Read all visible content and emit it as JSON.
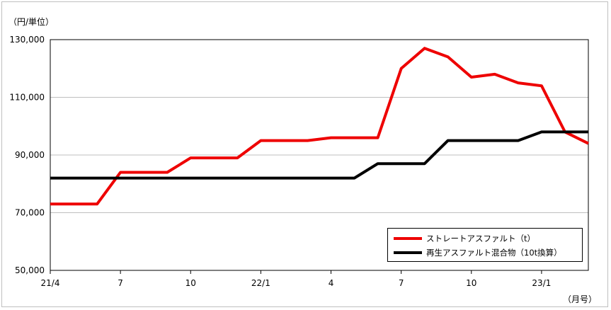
{
  "chart_data": {
    "type": "line",
    "ylabel": "（円/単位）",
    "xlabel": "（月号）",
    "ylim": [
      50000,
      130000
    ],
    "y_ticks": [
      "50,000",
      "70,000",
      "90,000",
      "110,000",
      "130,000"
    ],
    "y_tick_values": [
      50000,
      70000,
      90000,
      110000,
      130000
    ],
    "x_points": [
      "21/4",
      "21/5",
      "21/6",
      "21/7",
      "21/8",
      "21/9",
      "21/10",
      "21/11",
      "21/12",
      "22/1",
      "22/2",
      "22/3",
      "22/4",
      "22/5",
      "22/6",
      "22/7",
      "22/8",
      "22/9",
      "22/10",
      "22/11",
      "22/12",
      "23/1",
      "23/2",
      "23/3"
    ],
    "x_tick_labels": [
      {
        "label": "21/4",
        "index": 0
      },
      {
        "label": "7",
        "index": 3
      },
      {
        "label": "10",
        "index": 6
      },
      {
        "label": "22/1",
        "index": 9
      },
      {
        "label": "4",
        "index": 12
      },
      {
        "label": "7",
        "index": 15
      },
      {
        "label": "10",
        "index": 18
      },
      {
        "label": "23/1",
        "index": 21
      }
    ],
    "grid": true,
    "legend_position": "bottom-right",
    "series": [
      {
        "name": "ストレートアスファルト（t）",
        "color": "#ee0000",
        "values": [
          73000,
          73000,
          73000,
          84000,
          84000,
          84000,
          89000,
          89000,
          89000,
          95000,
          95000,
          95000,
          96000,
          96000,
          96000,
          120000,
          127000,
          124000,
          117000,
          118000,
          115000,
          114000,
          98000,
          94000
        ]
      },
      {
        "name": "再生アスファルト混合物（10t換算）",
        "color": "#000000",
        "values": [
          82000,
          82000,
          82000,
          82000,
          82000,
          82000,
          82000,
          82000,
          82000,
          82000,
          82000,
          82000,
          82000,
          82000,
          87000,
          87000,
          87000,
          95000,
          95000,
          95000,
          95000,
          98000,
          98000,
          98000
        ]
      }
    ]
  }
}
